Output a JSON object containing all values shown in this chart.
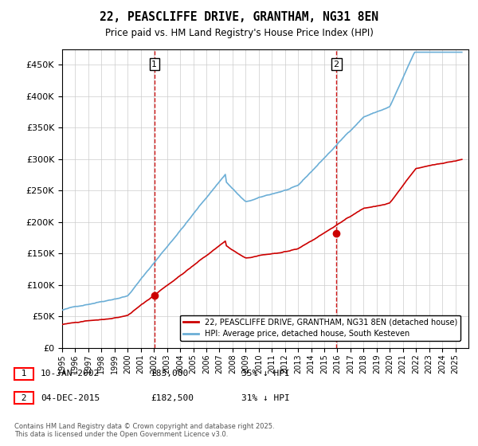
{
  "title": "22, PEASCLIFFE DRIVE, GRANTHAM, NG31 8EN",
  "subtitle": "Price paid vs. HM Land Registry's House Price Index (HPI)",
  "ylim": [
    0,
    475000
  ],
  "yticks": [
    0,
    50000,
    100000,
    150000,
    200000,
    250000,
    300000,
    350000,
    400000,
    450000
  ],
  "bg_color": "#ffffff",
  "grid_color": "#cccccc",
  "hpi_color": "#6baed6",
  "price_color": "#cc0000",
  "sale1_x": 2002.04,
  "sale1_y": 83000,
  "sale1_label": "1",
  "sale2_x": 2015.92,
  "sale2_y": 182500,
  "sale2_label": "2",
  "legend_price_label": "22, PEASCLIFFE DRIVE, GRANTHAM, NG31 8EN (detached house)",
  "legend_hpi_label": "HPI: Average price, detached house, South Kesteven",
  "footer": "Contains HM Land Registry data © Crown copyright and database right 2025.\nThis data is licensed under the Open Government Licence v3.0.",
  "xmin": 1995,
  "xmax": 2026
}
